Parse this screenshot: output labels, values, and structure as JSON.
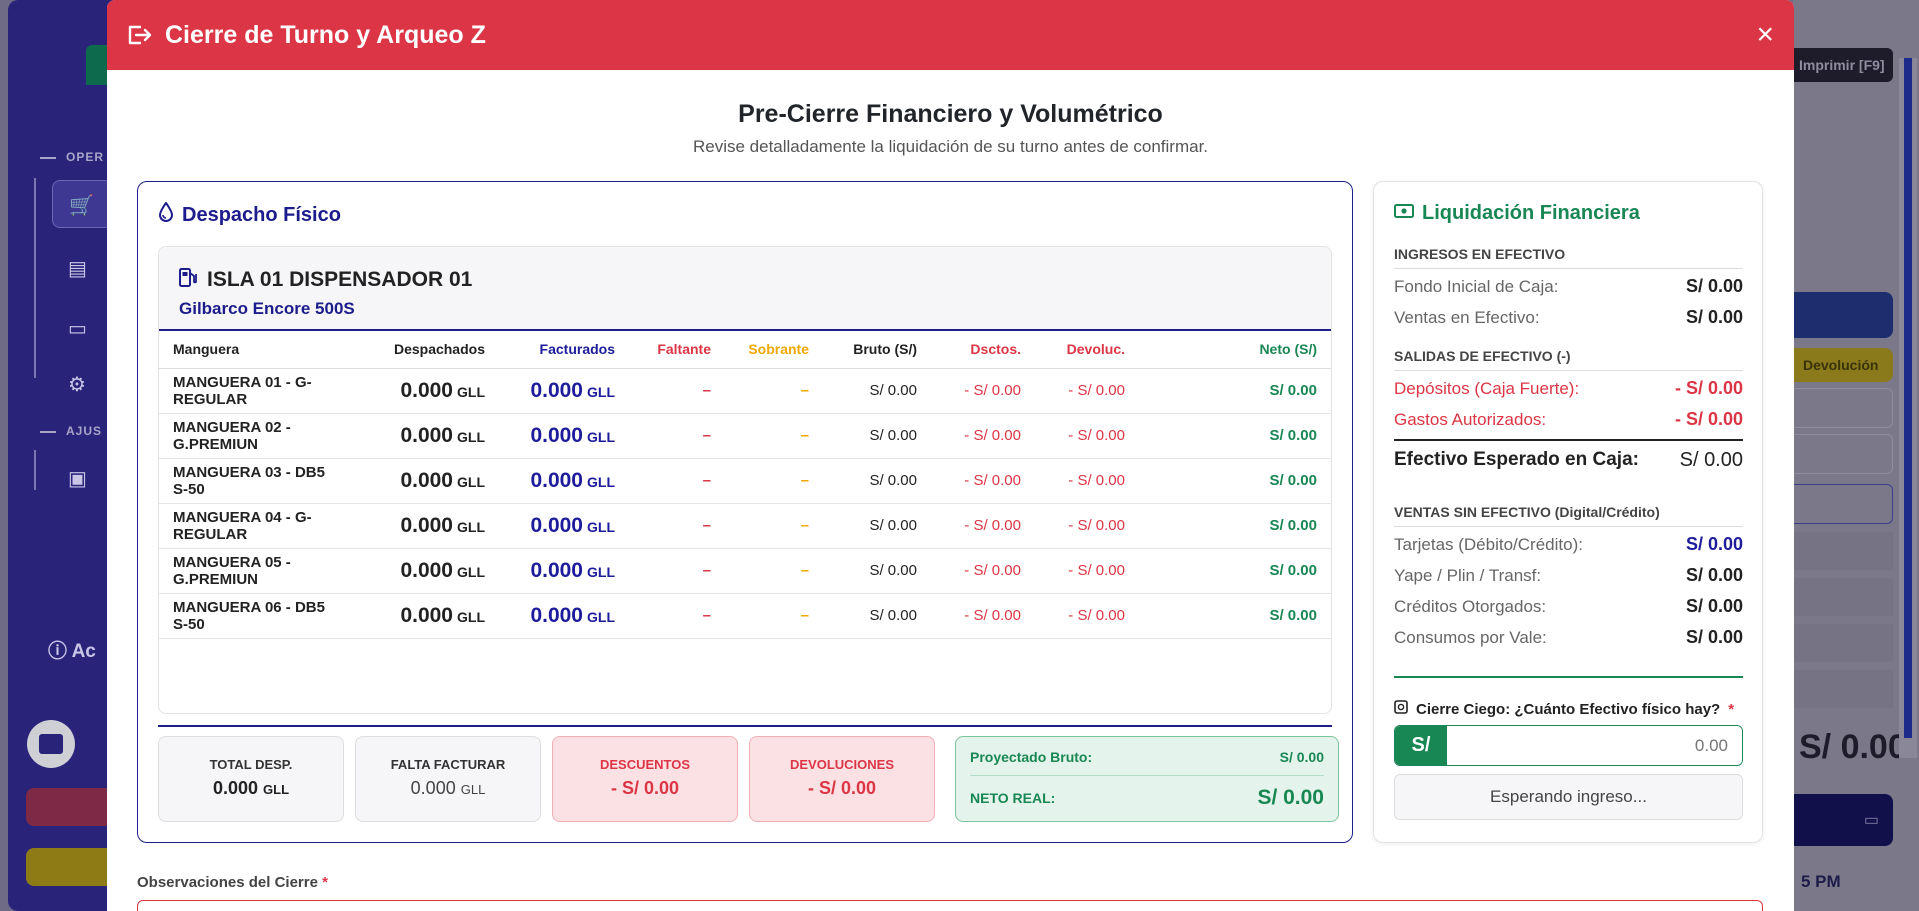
{
  "background": {
    "sections": [
      "OPER",
      "AJUS"
    ],
    "info_text": "Ac",
    "print_button": "Imprimir [F9]",
    "devolucion_button": "Devolución",
    "amount": "S/ 0.00",
    "time": "5 PM"
  },
  "modal": {
    "title": "Cierre de Turno y Arqueo Z",
    "close_label": "×",
    "heading": "Pre-Cierre Financiero y Volumétrico",
    "subheading": "Revise detalladamente la liquidación de su turno antes de confirmar."
  },
  "despacho": {
    "title": "Despacho Físico",
    "dispenser_name": "ISLA 01 DISPENSADOR 01",
    "dispenser_model": "Gilbarco Encore 500S",
    "columns": [
      "Manguera",
      "Despachados",
      "Facturados",
      "Faltante",
      "Sobrante",
      "Bruto (S/)",
      "Dsctos.",
      "Devoluc.",
      "Neto (S/)"
    ],
    "unit": "GLL",
    "rows": [
      {
        "name": "MANGUERA 01 - G-REGULAR",
        "despachados": "0.000",
        "facturados": "0.000",
        "faltante": "–",
        "sobrante": "–",
        "bruto": "S/ 0.00",
        "dsctos": "- S/ 0.00",
        "devoluc": "- S/ 0.00",
        "neto": "S/ 0.00"
      },
      {
        "name": "MANGUERA 02 - G.PREMIUN",
        "despachados": "0.000",
        "facturados": "0.000",
        "faltante": "–",
        "sobrante": "–",
        "bruto": "S/ 0.00",
        "dsctos": "- S/ 0.00",
        "devoluc": "- S/ 0.00",
        "neto": "S/ 0.00"
      },
      {
        "name": "MANGUERA 03 - DB5 S-50",
        "despachados": "0.000",
        "facturados": "0.000",
        "faltante": "–",
        "sobrante": "–",
        "bruto": "S/ 0.00",
        "dsctos": "- S/ 0.00",
        "devoluc": "- S/ 0.00",
        "neto": "S/ 0.00"
      },
      {
        "name": "MANGUERA 04 - G-REGULAR",
        "despachados": "0.000",
        "facturados": "0.000",
        "faltante": "–",
        "sobrante": "–",
        "bruto": "S/ 0.00",
        "dsctos": "- S/ 0.00",
        "devoluc": "- S/ 0.00",
        "neto": "S/ 0.00"
      },
      {
        "name": "MANGUERA 05 - G.PREMIUN",
        "despachados": "0.000",
        "facturados": "0.000",
        "faltante": "–",
        "sobrante": "–",
        "bruto": "S/ 0.00",
        "dsctos": "- S/ 0.00",
        "devoluc": "- S/ 0.00",
        "neto": "S/ 0.00"
      },
      {
        "name": "MANGUERA 06 - DB5 S-50",
        "despachados": "0.000",
        "facturados": "0.000",
        "faltante": "–",
        "sobrante": "–",
        "bruto": "S/ 0.00",
        "dsctos": "- S/ 0.00",
        "devoluc": "- S/ 0.00",
        "neto": "S/ 0.00"
      }
    ],
    "summary": {
      "total_desp_label": "TOTAL DESP.",
      "total_desp_value": "0.000",
      "falta_facturar_label": "FALTA FACTURAR",
      "falta_facturar_value": "0.000",
      "descuentos_label": "DESCUENTOS",
      "descuentos_value": "- S/ 0.00",
      "devoluciones_label": "DEVOLUCIONES",
      "devoluciones_value": "- S/ 0.00",
      "proyectado_label": "Proyectado Bruto:",
      "proyectado_value": "S/ 0.00",
      "neto_label": "NETO REAL:",
      "neto_value": "S/ 0.00"
    }
  },
  "liquidacion": {
    "title": "Liquidación Financiera",
    "ingresos_title": "INGRESOS EN EFECTIVO",
    "fondo_label": "Fondo Inicial de Caja:",
    "fondo_value": "S/ 0.00",
    "ventas_efectivo_label": "Ventas en Efectivo:",
    "ventas_efectivo_value": "S/ 0.00",
    "salidas_title": "SALIDAS DE EFECTIVO (-)",
    "depositos_label": "Depósitos (Caja Fuerte):",
    "depositos_value": "- S/ 0.00",
    "gastos_label": "Gastos Autorizados:",
    "gastos_value": "- S/ 0.00",
    "esperado_label": "Efectivo Esperado en Caja:",
    "esperado_value": "S/ 0.00",
    "sin_efectivo_title": "VENTAS SIN EFECTIVO (Digital/Crédito)",
    "tarjetas_label": "Tarjetas (Débito/Crédito):",
    "tarjetas_value": "S/ 0.00",
    "yape_label": "Yape / Plin / Transf:",
    "yape_value": "S/ 0.00",
    "creditos_label": "Créditos Otorgados:",
    "creditos_value": "S/ 0.00",
    "vale_label": "Consumos por Vale:",
    "vale_value": "S/ 0.00",
    "cierre_ciego_label": "Cierre Ciego: ¿Cuánto Efectivo físico hay?",
    "required_mark": "*",
    "currency_prefix": "S/",
    "cash_placeholder": "0.00",
    "waiting_label": "Esperando ingreso..."
  },
  "observaciones": {
    "label": "Observaciones del Cierre",
    "required_mark": "*"
  },
  "colors": {
    "header_red": "#dc3545",
    "navy": "#1c1c8c",
    "green": "#198754",
    "yellow": "#f0a800"
  }
}
